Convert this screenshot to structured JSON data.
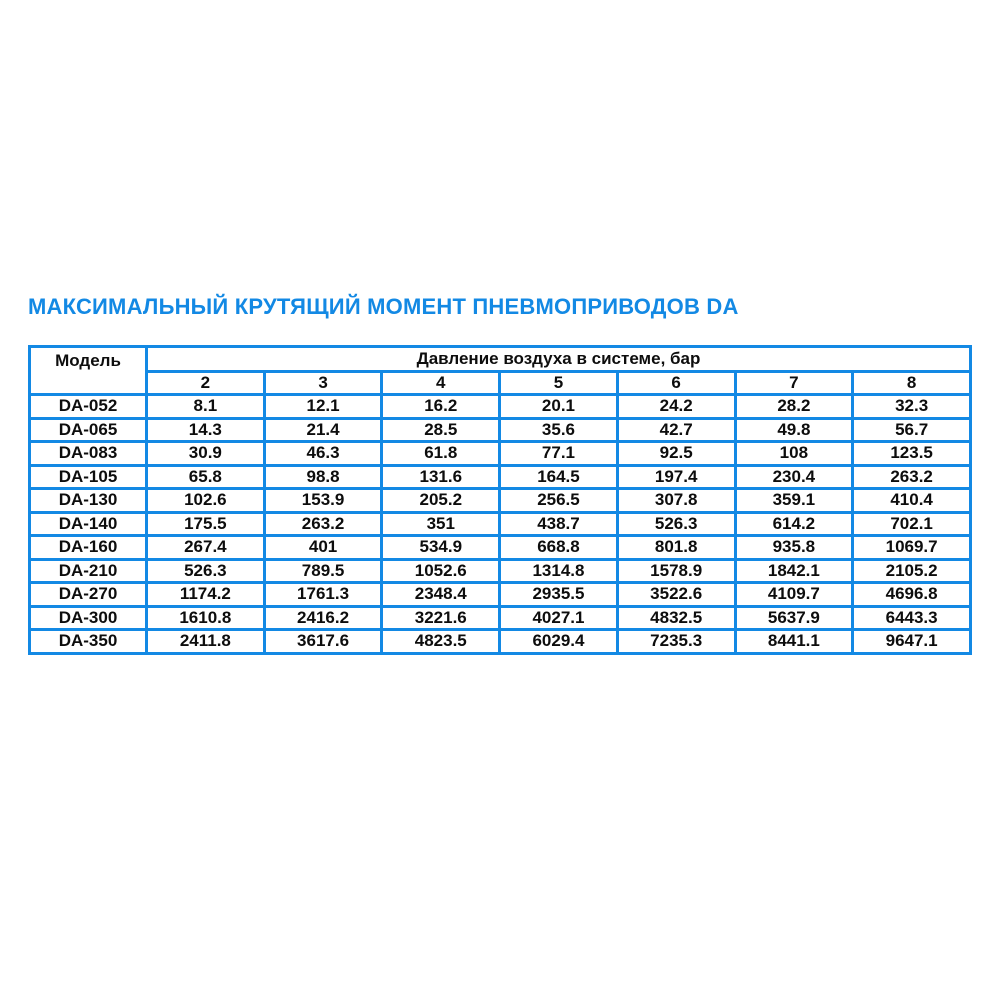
{
  "title": "МАКСИМАЛЬНЫЙ КРУТЯЩИЙ МОМЕНТ ПНЕВМОПРИВОДОВ DA",
  "colors": {
    "accent": "#1389e4",
    "table_border": "#1389e4",
    "text": "#0d0d0d",
    "background": "#ffffff"
  },
  "table": {
    "model_header": "Модель",
    "pressure_header": "Давление воздуха в системе, бар",
    "pressure_columns": [
      "2",
      "3",
      "4",
      "5",
      "6",
      "7",
      "8"
    ],
    "rows": [
      {
        "model": "DA-052",
        "values": [
          "8.1",
          "12.1",
          "16.2",
          "20.1",
          "24.2",
          "28.2",
          "32.3"
        ]
      },
      {
        "model": "DA-065",
        "values": [
          "14.3",
          "21.4",
          "28.5",
          "35.6",
          "42.7",
          "49.8",
          "56.7"
        ]
      },
      {
        "model": "DA-083",
        "values": [
          "30.9",
          "46.3",
          "61.8",
          "77.1",
          "92.5",
          "108",
          "123.5"
        ]
      },
      {
        "model": "DA-105",
        "values": [
          "65.8",
          "98.8",
          "131.6",
          "164.5",
          "197.4",
          "230.4",
          "263.2"
        ]
      },
      {
        "model": "DA-130",
        "values": [
          "102.6",
          "153.9",
          "205.2",
          "256.5",
          "307.8",
          "359.1",
          "410.4"
        ]
      },
      {
        "model": "DA-140",
        "values": [
          "175.5",
          "263.2",
          "351",
          "438.7",
          "526.3",
          "614.2",
          "702.1"
        ]
      },
      {
        "model": "DA-160",
        "values": [
          "267.4",
          "401",
          "534.9",
          "668.8",
          "801.8",
          "935.8",
          "1069.7"
        ]
      },
      {
        "model": "DA-210",
        "values": [
          "526.3",
          "789.5",
          "1052.6",
          "1314.8",
          "1578.9",
          "1842.1",
          "2105.2"
        ]
      },
      {
        "model": "DA-270",
        "values": [
          "1174.2",
          "1761.3",
          "2348.4",
          "2935.5",
          "3522.6",
          "4109.7",
          "4696.8"
        ]
      },
      {
        "model": "DA-300",
        "values": [
          "1610.8",
          "2416.2",
          "3221.6",
          "4027.1",
          "4832.5",
          "5637.9",
          "6443.3"
        ]
      },
      {
        "model": "DA-350",
        "values": [
          "2411.8",
          "3617.6",
          "4823.5",
          "6029.4",
          "7235.3",
          "8441.1",
          "9647.1"
        ]
      }
    ]
  }
}
